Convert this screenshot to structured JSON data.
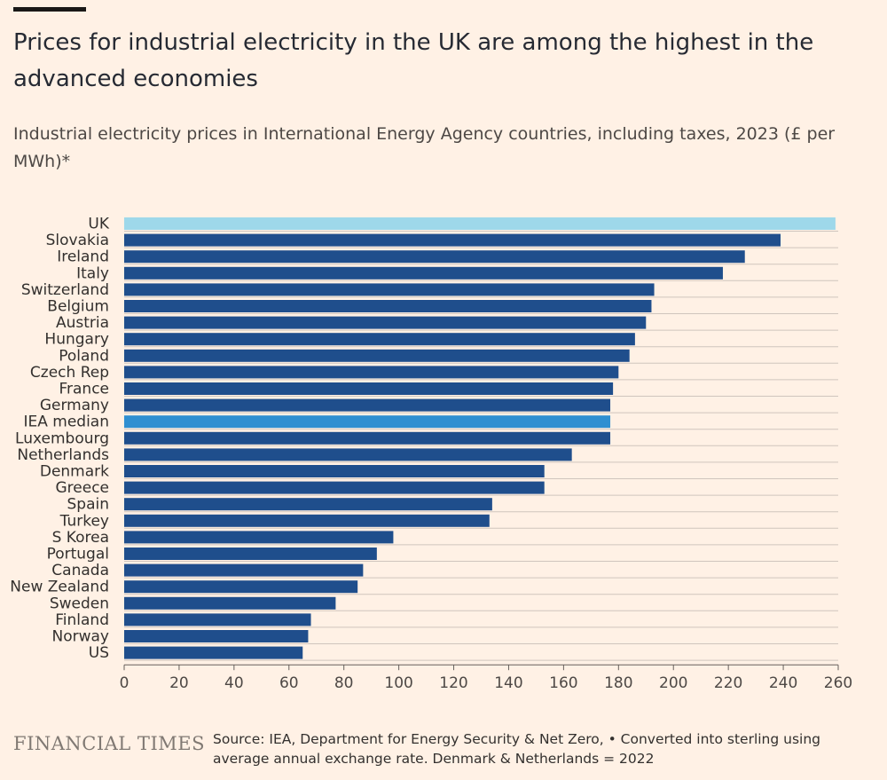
{
  "header": {
    "title": "Prices for industrial electricity in the UK are among the highest in the advanced economies",
    "subtitle": "Industrial electricity prices in International Energy Agency countries, including taxes, 2023 (£ per MWh)*"
  },
  "footer": {
    "brand": "FINANCIAL TIMES",
    "source": "Source: IEA, Department for Energy Security & Net Zero, • Converted into sterling using average annual exchange rate. Denmark & Netherlands = 2022"
  },
  "colors": {
    "background": "#fff1e5",
    "bar_default": "#1f4e8c",
    "bar_uk": "#9ed8ea",
    "bar_median": "#2f8fd1",
    "gridline": "#cfc5bd",
    "axis": "#66605c"
  },
  "chart_data": {
    "type": "bar",
    "orientation": "horizontal",
    "title": "Prices for industrial electricity in the UK are among the highest in the advanced economies",
    "subtitle": "Industrial electricity prices in International Energy Agency countries, including taxes, 2023 (£ per MWh)*",
    "xlabel": "",
    "ylabel": "",
    "xlim": [
      0,
      260
    ],
    "x_ticks": [
      0,
      20,
      40,
      60,
      80,
      100,
      120,
      140,
      160,
      180,
      200,
      220,
      240,
      260
    ],
    "grid": true,
    "categories": [
      "UK",
      "Slovakia",
      "Ireland",
      "Italy",
      "Switzerland",
      "Belgium",
      "Austria",
      "Hungary",
      "Poland",
      "Czech Rep",
      "France",
      "Germany",
      "IEA median",
      "Luxembourg",
      "Netherlands",
      "Denmark",
      "Greece",
      "Spain",
      "Turkey",
      "S Korea",
      "Portugal",
      "Canada",
      "New Zealand",
      "Sweden",
      "Finland",
      "Norway",
      "US"
    ],
    "values": [
      259,
      239,
      226,
      218,
      193,
      192,
      190,
      186,
      184,
      180,
      178,
      177,
      177,
      177,
      163,
      153,
      153,
      134,
      133,
      98,
      92,
      87,
      85,
      77,
      68,
      67,
      65
    ],
    "highlight": {
      "UK": "bar_uk",
      "IEA median": "bar_median"
    }
  }
}
